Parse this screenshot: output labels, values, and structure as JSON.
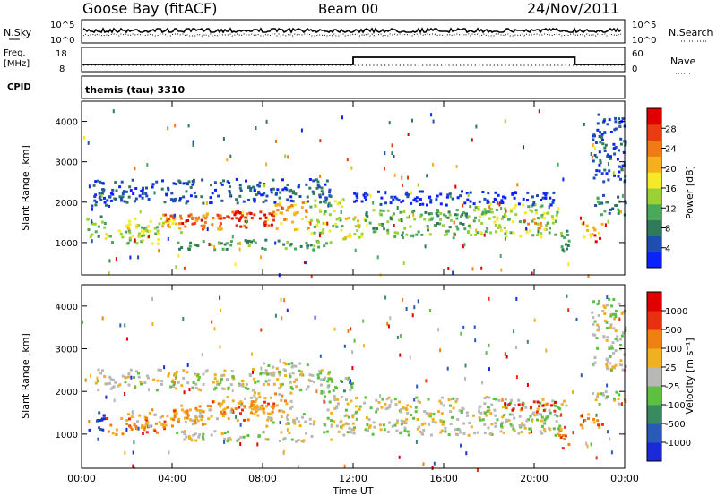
{
  "header": {
    "station": "Goose Bay (fitACF)",
    "beam": "Beam 00",
    "date": "24/Nov/2011"
  },
  "top_panel": {
    "left_label": "N.Sky",
    "right_label": "N.Search",
    "left_ticks": [
      "10^5",
      "10^0"
    ],
    "right_ticks": [
      "10^5",
      "10^0"
    ]
  },
  "freq_panel": {
    "left_label_1": "Freq.",
    "left_label_2": "[MHz]",
    "right_label": "Nave",
    "cpid_label": "CPID",
    "left_ticks": [
      "18",
      "8"
    ],
    "right_ticks": [
      "60",
      "0"
    ],
    "cpid_text": "themis (tau) 3310",
    "freq_steps": [
      {
        "t": 0.0,
        "v": 0
      },
      {
        "t": 12.0,
        "v": 0
      },
      {
        "t": 12.0,
        "v": 1
      },
      {
        "t": 21.8,
        "v": 1
      },
      {
        "t": 21.8,
        "v": 0
      },
      {
        "t": 24.0,
        "v": 0
      }
    ]
  },
  "chart_data": [
    {
      "type": "heatmap",
      "name": "power",
      "ylabel": "Slant Range [km]",
      "ylim": [
        200,
        4500
      ],
      "yticks": [
        "1000",
        "2000",
        "3000",
        "4000"
      ],
      "colorbar_label": "Power [dB]",
      "colorbar_ticks": [
        "28",
        "24",
        "20",
        "16",
        "12",
        "8",
        "4"
      ],
      "colors": [
        "#0a22ff",
        "#1e4fb0",
        "#2e7a5a",
        "#4aa85a",
        "#9ad236",
        "#f6ea28",
        "#f6b01e",
        "#f07a14",
        "#ea3c10",
        "#e00000"
      ],
      "bands": [
        {
          "t0": 0.2,
          "t1": 1.0,
          "r0": 1150,
          "r1": 1700,
          "c": 3
        },
        {
          "t0": 0.4,
          "t1": 1.4,
          "r0": 1900,
          "r1": 2250,
          "c": 1
        },
        {
          "t0": 1.0,
          "t1": 3.5,
          "r0": 1000,
          "r1": 1450,
          "c": 4
        },
        {
          "t0": 2.0,
          "t1": 4.5,
          "r0": 1250,
          "r1": 1650,
          "c": 5
        },
        {
          "t0": 3.5,
          "t1": 6.5,
          "r0": 1350,
          "r1": 1750,
          "c": 7
        },
        {
          "t0": 4.0,
          "t1": 5.5,
          "r0": 1500,
          "r1": 1700,
          "c": 8
        },
        {
          "t0": 6.0,
          "t1": 8.5,
          "r0": 1400,
          "r1": 1850,
          "c": 8
        },
        {
          "t0": 6.5,
          "t1": 7.5,
          "r0": 1500,
          "r1": 1800,
          "c": 9
        },
        {
          "t0": 8.5,
          "t1": 10.0,
          "r0": 1350,
          "r1": 2050,
          "c": 6
        },
        {
          "t0": 10.0,
          "t1": 11.5,
          "r0": 1250,
          "r1": 2100,
          "c": 4
        },
        {
          "t0": 11.5,
          "t1": 12.5,
          "r0": 1050,
          "r1": 1700,
          "c": 5
        },
        {
          "t0": 12.5,
          "t1": 17.0,
          "r0": 1150,
          "r1": 1850,
          "c": 3
        },
        {
          "t0": 17.0,
          "t1": 21.0,
          "r0": 1150,
          "r1": 2000,
          "c": 4
        },
        {
          "t0": 19.5,
          "t1": 20.5,
          "r0": 1350,
          "r1": 1650,
          "c": 7
        },
        {
          "t0": 21.0,
          "t1": 21.5,
          "r0": 800,
          "r1": 1500,
          "c": 3
        },
        {
          "t0": 22.0,
          "t1": 23.0,
          "r0": 1150,
          "r1": 1500,
          "c": 6
        },
        {
          "t0": 22.5,
          "t1": 23.0,
          "r0": 1050,
          "r1": 1250,
          "c": 9
        },
        {
          "t0": 22.5,
          "t1": 24.0,
          "r0": 1700,
          "r1": 2200,
          "c": 2
        },
        {
          "t0": 0.5,
          "t1": 11.0,
          "r0": 2000,
          "r1": 2600,
          "c": 1
        },
        {
          "t0": 4.0,
          "t1": 11.0,
          "r0": 850,
          "r1": 1100,
          "c": 3
        },
        {
          "t0": 12.0,
          "t1": 21.0,
          "r0": 1950,
          "r1": 2300,
          "c": 0
        },
        {
          "t0": 22.5,
          "t1": 24.0,
          "r0": 2500,
          "r1": 4200,
          "c": 1
        }
      ]
    },
    {
      "type": "heatmap",
      "name": "velocity",
      "ylabel": "Slant Range [km]",
      "ylim": [
        200,
        4500
      ],
      "yticks": [
        "1000",
        "2000",
        "3000",
        "4000"
      ],
      "xlabel": "Time UT",
      "xticks": [
        "00:00",
        "04:00",
        "08:00",
        "12:00",
        "16:00",
        "20:00",
        "00:00"
      ],
      "xlim": [
        0,
        24
      ],
      "colorbar_label": "Velocity [m s⁻¹]",
      "colorbar_ticks": [
        "1000",
        "500",
        "100",
        "25",
        "-25",
        "-100",
        "-500",
        "-1000"
      ],
      "colors": [
        "#1a2ad8",
        "#2a5ab8",
        "#3a8a60",
        "#5cc040",
        "#b8b8b8",
        "#f0b020",
        "#f08010",
        "#e83010",
        "#e00000"
      ],
      "bands": [
        {
          "t0": 0.2,
          "t1": 1.0,
          "r0": 1100,
          "r1": 1600,
          "c": 0
        },
        {
          "t0": 1.0,
          "t1": 4.0,
          "r0": 1000,
          "r1": 1400,
          "c": 6
        },
        {
          "t0": 2.0,
          "t1": 6.0,
          "r0": 1200,
          "r1": 1600,
          "c": 5
        },
        {
          "t0": 4.0,
          "t1": 8.5,
          "r0": 1350,
          "r1": 1800,
          "c": 6
        },
        {
          "t0": 6.0,
          "t1": 9.5,
          "r0": 1550,
          "r1": 2000,
          "c": 5
        },
        {
          "t0": 8.0,
          "t1": 10.5,
          "r0": 1200,
          "r1": 1500,
          "c": 4
        },
        {
          "t0": 10.5,
          "t1": 21.5,
          "r0": 1000,
          "r1": 1900,
          "c": 4
        },
        {
          "t0": 18.5,
          "t1": 21.0,
          "r0": 1550,
          "r1": 1800,
          "c": 7
        },
        {
          "t0": 21.0,
          "t1": 21.5,
          "r0": 700,
          "r1": 1300,
          "c": 6
        },
        {
          "t0": 22.0,
          "t1": 23.0,
          "r0": 1150,
          "r1": 1500,
          "c": 6
        },
        {
          "t0": 22.5,
          "t1": 24.0,
          "r0": 1700,
          "r1": 2100,
          "c": 4
        },
        {
          "t0": 0.5,
          "t1": 11.0,
          "r0": 2050,
          "r1": 2550,
          "c": 4
        },
        {
          "t0": 4.0,
          "t1": 11.0,
          "r0": 850,
          "r1": 1100,
          "c": 4
        },
        {
          "t0": 8.0,
          "t1": 11.0,
          "r0": 2400,
          "r1": 2700,
          "c": 4
        },
        {
          "t0": 10.5,
          "t1": 12.0,
          "r0": 1900,
          "r1": 2400,
          "c": 3
        },
        {
          "t0": 22.5,
          "t1": 24.0,
          "r0": 2500,
          "r1": 4200,
          "c": 4
        }
      ]
    }
  ]
}
